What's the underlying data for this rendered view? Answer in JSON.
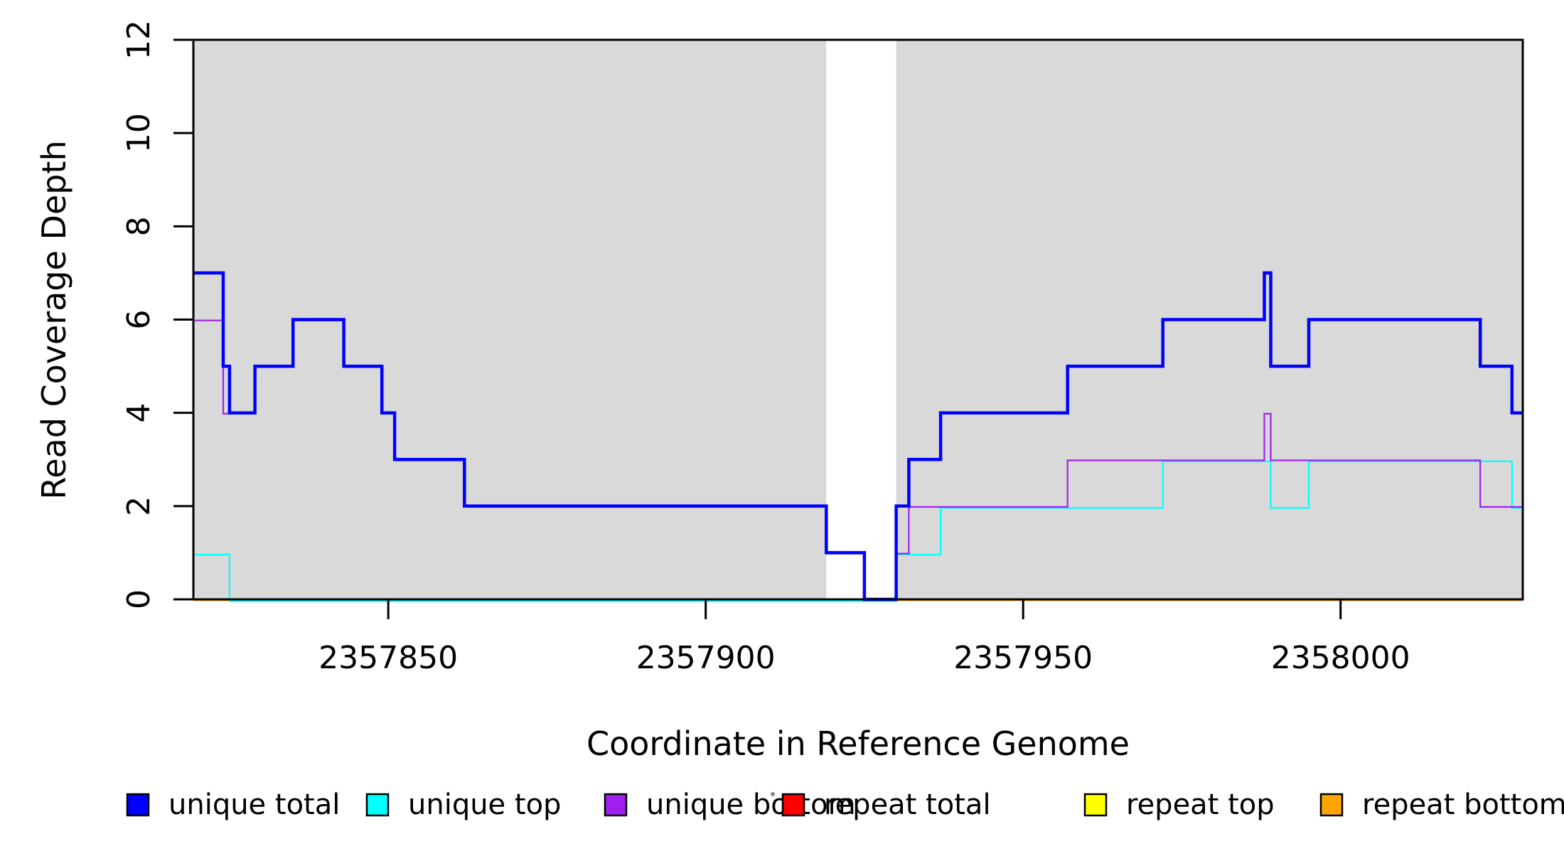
{
  "chart_data": {
    "type": "line",
    "subtype": "step",
    "title": "",
    "xlabel": "Coordinate in Reference Genome",
    "ylabel": "Read Coverage Depth",
    "xlim": [
      2357819.3,
      2358028.7
    ],
    "ylim": [
      0,
      12
    ],
    "x_ticks": [
      2357850,
      2357900,
      2357950,
      2358000
    ],
    "y_ticks": [
      0,
      2,
      4,
      6,
      8,
      10,
      12
    ],
    "grid": false,
    "shade_color": "#D9D9D9",
    "shaded_regions": [
      {
        "start": 2357819.3,
        "end": 2357919
      },
      {
        "start": 2357930,
        "end": 2358028.7
      }
    ],
    "series_draw_order": [
      {
        "name": "repeat total",
        "color": "#FF0000",
        "width": 2.2,
        "dy": 1,
        "end": 2358028.7,
        "breakpoints": [
          [
            2357819.3,
            0
          ]
        ]
      },
      {
        "name": "repeat top",
        "color": "#FFFF00",
        "width": 2.2,
        "dy": 1,
        "end": 2358028.7,
        "breakpoints": [
          [
            2357819.3,
            0
          ]
        ]
      },
      {
        "name": "repeat bottom",
        "color": "#FFA500",
        "width": 3,
        "dy": 1,
        "end": 2358028.7,
        "breakpoints": [
          [
            2357819.3,
            0
          ]
        ]
      },
      {
        "name": "unique top",
        "color": "#00FFFF",
        "width": 2.2,
        "dy": 2.6,
        "end": 2358028.7,
        "breakpoints": [
          [
            2357819.3,
            1
          ],
          [
            2357825,
            0
          ],
          [
            2357930,
            1
          ],
          [
            2357937,
            2
          ],
          [
            2357972,
            3
          ],
          [
            2357989,
            2
          ],
          [
            2357995,
            3
          ],
          [
            2358027,
            2
          ]
        ]
      },
      {
        "name": "unique bottom",
        "color": "#A020F0",
        "width": 2.2,
        "dy": 1.2,
        "end": 2358028.7,
        "breakpoints": [
          [
            2357819.3,
            6
          ],
          [
            2357824,
            4
          ],
          [
            2357829,
            5
          ],
          [
            2357835,
            6
          ],
          [
            2357843,
            5
          ],
          [
            2357849,
            4
          ],
          [
            2357851,
            3
          ],
          [
            2357862,
            2
          ],
          [
            2357919,
            1
          ],
          [
            2357925,
            0
          ],
          [
            2357930,
            1
          ],
          [
            2357932,
            2
          ],
          [
            2357957,
            3
          ],
          [
            2357988,
            4
          ],
          [
            2357989,
            3
          ],
          [
            2358022,
            2
          ]
        ]
      },
      {
        "name": "unique total",
        "color": "#0000FF",
        "width": 4.5,
        "dy": 0,
        "end": 2358028.7,
        "breakpoints": [
          [
            2357819.3,
            7
          ],
          [
            2357824,
            5
          ],
          [
            2357825,
            4
          ],
          [
            2357829,
            5
          ],
          [
            2357835,
            6
          ],
          [
            2357843,
            5
          ],
          [
            2357849,
            4
          ],
          [
            2357851,
            3
          ],
          [
            2357862,
            2
          ],
          [
            2357919,
            1
          ],
          [
            2357925,
            0
          ],
          [
            2357930,
            2
          ],
          [
            2357932,
            3
          ],
          [
            2357937,
            4
          ],
          [
            2357957,
            5
          ],
          [
            2357972,
            6
          ],
          [
            2357988,
            7
          ],
          [
            2357989,
            5
          ],
          [
            2357995,
            6
          ],
          [
            2358022,
            5
          ],
          [
            2358027,
            4
          ]
        ]
      }
    ],
    "legend": {
      "position": "bottom",
      "items": [
        {
          "label": "unique total",
          "color": "#0000FF"
        },
        {
          "label": "unique top",
          "color": "#00FFFF"
        },
        {
          "label": "unique bottom",
          "color": "#A020F0"
        },
        {
          "label": "repeat total",
          "color": "#FF0000"
        },
        {
          "label": "repeat top",
          "color": "#FFFF00"
        },
        {
          "label": "repeat bottom",
          "color": "#FFA500"
        }
      ]
    }
  }
}
